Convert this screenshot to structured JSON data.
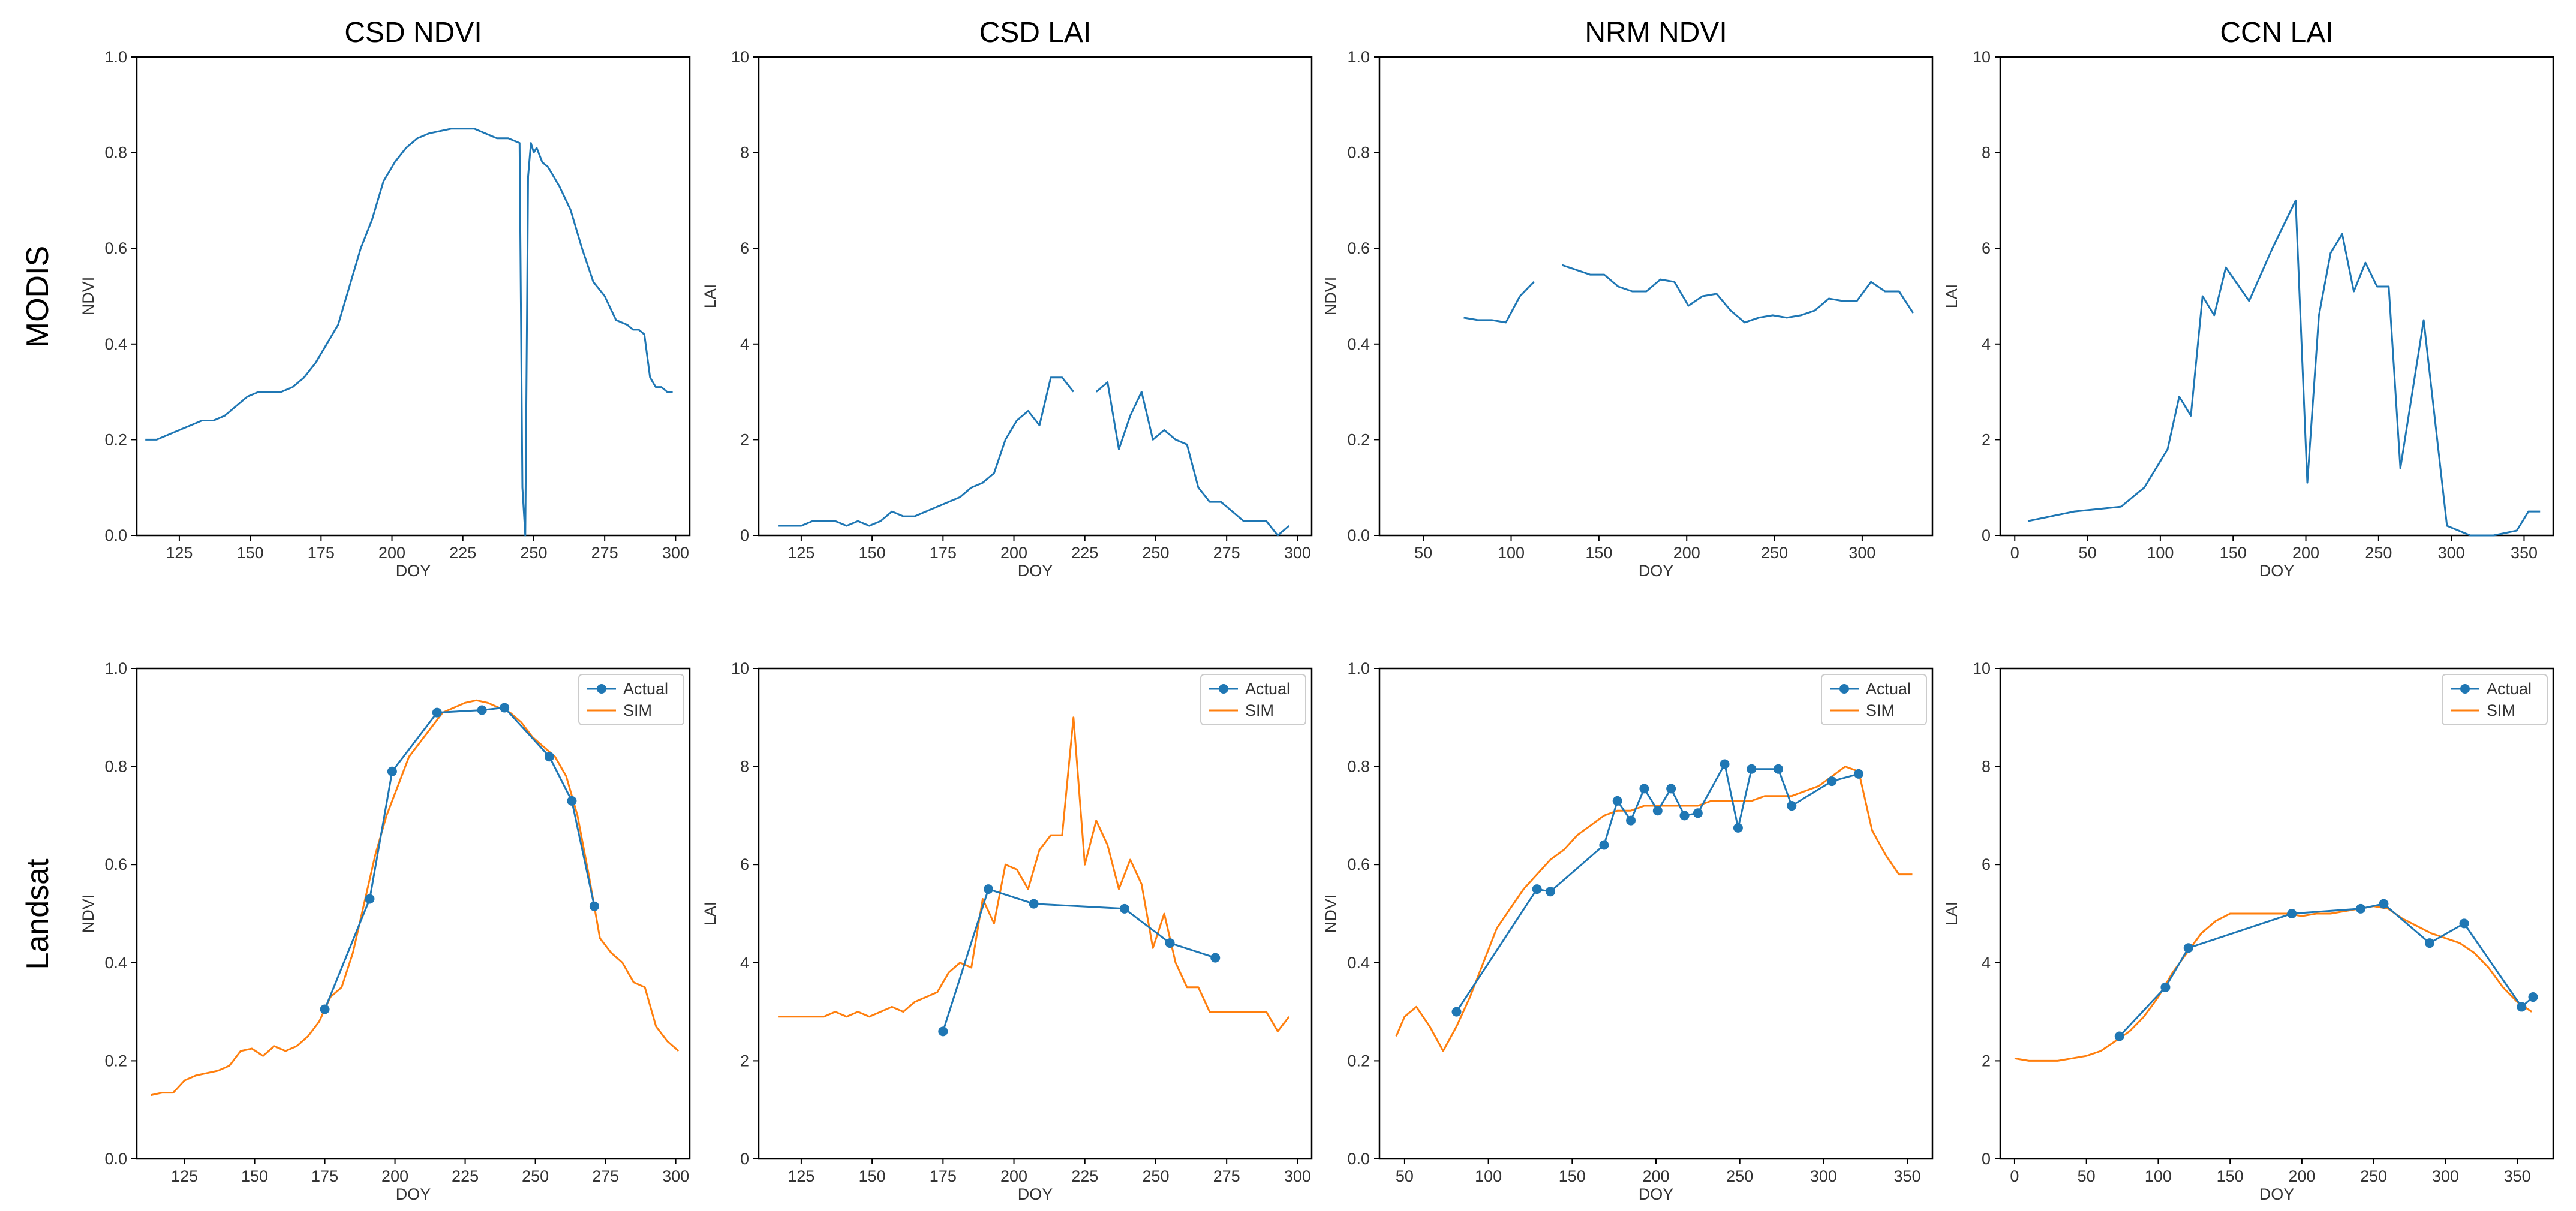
{
  "row_labels": [
    "MODIS",
    "Landsat"
  ],
  "colors": {
    "actual": "#1f77b4",
    "sim": "#ff7f0e"
  },
  "chart_data": [
    {
      "type": "line",
      "title": "CSD NDVI",
      "xlabel": "DOY",
      "ylabel": "NDVI",
      "xlim": [
        110,
        305
      ],
      "ylim": [
        0,
        1.0
      ],
      "xticks": [
        125,
        150,
        175,
        200,
        225,
        250,
        275,
        300
      ],
      "yticks": [
        0,
        0.2,
        0.4,
        0.6,
        0.8,
        1.0
      ],
      "series": [
        {
          "name": "MODIS",
          "color": "#1f77b4",
          "x": [
            113,
            117,
            121,
            125,
            129,
            133,
            137,
            141,
            145,
            149,
            153,
            157,
            161,
            165,
            169,
            173,
            177,
            181,
            185,
            189,
            193,
            197,
            201,
            205,
            209,
            213,
            217,
            221,
            225,
            229,
            233,
            237,
            241,
            245,
            246,
            247,
            248,
            249,
            250,
            251,
            253,
            255,
            259,
            263,
            267,
            271,
            275,
            279,
            283,
            285,
            287,
            289,
            291,
            293,
            295,
            297,
            299
          ],
          "y": [
            0.2,
            0.2,
            0.21,
            0.22,
            0.23,
            0.24,
            0.24,
            0.25,
            0.27,
            0.29,
            0.3,
            0.3,
            0.3,
            0.31,
            0.33,
            0.36,
            0.4,
            0.44,
            0.52,
            0.6,
            0.66,
            0.74,
            0.78,
            0.81,
            0.83,
            0.84,
            0.845,
            0.85,
            0.85,
            0.85,
            0.84,
            0.83,
            0.83,
            0.82,
            0.1,
            0.0,
            0.75,
            0.82,
            0.8,
            0.81,
            0.78,
            0.77,
            0.73,
            0.68,
            0.6,
            0.53,
            0.5,
            0.45,
            0.44,
            0.43,
            0.43,
            0.42,
            0.33,
            0.31,
            0.31,
            0.3,
            0.3
          ]
        }
      ]
    },
    {
      "type": "line",
      "title": "CSD LAI",
      "xlabel": "DOY",
      "ylabel": "LAI",
      "xlim": [
        110,
        305
      ],
      "ylim": [
        0,
        10
      ],
      "xticks": [
        125,
        150,
        175,
        200,
        225,
        250,
        275,
        300
      ],
      "yticks": [
        0,
        2,
        4,
        6,
        8,
        10
      ],
      "series": [
        {
          "name": "MODIS",
          "color": "#1f77b4",
          "x": [
            117,
            125,
            129,
            133,
            137,
            141,
            145,
            149,
            153,
            157,
            161,
            165,
            169,
            173,
            177,
            181,
            185,
            189,
            193,
            197,
            201,
            205,
            209,
            213,
            217,
            221,
            225,
            null,
            229,
            233,
            237,
            241,
            245,
            249,
            253,
            257,
            261,
            265,
            269,
            273,
            277,
            281,
            285,
            289,
            293,
            297
          ],
          "y": [
            0.2,
            0.2,
            0.3,
            0.3,
            0.3,
            0.2,
            0.3,
            0.2,
            0.3,
            0.5,
            0.4,
            0.4,
            0.5,
            0.6,
            0.7,
            0.8,
            1.0,
            1.1,
            1.3,
            2.0,
            2.4,
            2.6,
            2.3,
            3.3,
            3.3,
            3.0,
            null,
            null,
            3.0,
            3.2,
            1.8,
            2.5,
            3.0,
            2.0,
            2.2,
            2.0,
            1.9,
            1.0,
            0.7,
            0.7,
            0.5,
            0.3,
            0.3,
            0.3,
            0.0,
            0.2
          ]
        }
      ]
    },
    {
      "type": "line",
      "title": "NRM NDVI",
      "xlabel": "DOY",
      "ylabel": "NDVI",
      "xlim": [
        25,
        340
      ],
      "ylim": [
        0,
        1.0
      ],
      "xticks": [
        50,
        100,
        150,
        200,
        250,
        300
      ],
      "yticks": [
        0,
        0.2,
        0.4,
        0.6,
        0.8,
        1.0
      ],
      "series": [
        {
          "name": "MODIS",
          "color": "#1f77b4",
          "x": [
            73,
            81,
            89,
            97,
            105,
            113,
            null,
            129,
            137,
            145,
            153,
            161,
            169,
            177,
            185,
            193,
            201,
            209,
            217,
            225,
            233,
            241,
            249,
            257,
            265,
            273,
            281,
            289,
            297,
            305,
            313,
            321,
            329
          ],
          "y": [
            0.455,
            0.45,
            0.45,
            0.445,
            0.5,
            0.53,
            null,
            0.565,
            0.555,
            0.545,
            0.545,
            0.52,
            0.51,
            0.51,
            0.535,
            0.53,
            0.48,
            0.5,
            0.505,
            0.47,
            0.445,
            0.455,
            0.46,
            0.455,
            0.46,
            0.47,
            0.495,
            0.49,
            0.49,
            0.53,
            0.51,
            0.51,
            0.465
          ]
        }
      ]
    },
    {
      "type": "line",
      "title": "CCN LAI",
      "xlabel": "DOY",
      "ylabel": "LAI",
      "xlim": [
        -10,
        370
      ],
      "ylim": [
        0,
        10
      ],
      "xticks": [
        0,
        50,
        100,
        150,
        200,
        250,
        300,
        350
      ],
      "yticks": [
        0,
        2,
        4,
        6,
        8,
        10
      ],
      "series": [
        {
          "name": "MODIS",
          "color": "#1f77b4",
          "x": [
            9,
            25,
            41,
            57,
            73,
            89,
            105,
            113,
            121,
            129,
            137,
            145,
            161,
            177,
            193,
            201,
            209,
            217,
            225,
            233,
            241,
            249,
            257,
            265,
            281,
            297,
            313,
            329,
            345,
            353,
            361
          ],
          "y": [
            0.3,
            0.4,
            0.5,
            0.55,
            0.6,
            1.0,
            1.8,
            2.9,
            2.5,
            5.0,
            4.6,
            5.6,
            4.9,
            6.0,
            7.0,
            1.1,
            4.6,
            5.9,
            6.3,
            5.1,
            5.7,
            5.2,
            5.2,
            1.4,
            4.5,
            0.2,
            0.0,
            0.0,
            0.1,
            0.5,
            0.5
          ]
        }
      ]
    },
    {
      "type": "line",
      "title": "",
      "xlabel": "DOY",
      "ylabel": "NDVI",
      "xlim": [
        108,
        305
      ],
      "ylim": [
        0,
        1.0
      ],
      "xticks": [
        125,
        150,
        175,
        200,
        225,
        250,
        275,
        300
      ],
      "yticks": [
        0,
        0.2,
        0.4,
        0.6,
        0.8,
        1.0
      ],
      "legend": [
        "Actual",
        "SIM"
      ],
      "legend_loc": "top-right",
      "series": [
        {
          "name": "Actual",
          "color": "#1f77b4",
          "markers": true,
          "x": [
            175,
            191,
            199,
            215,
            231,
            239,
            255,
            263,
            271
          ],
          "y": [
            0.305,
            0.53,
            0.79,
            0.91,
            0.915,
            0.92,
            0.82,
            0.73,
            0.515
          ]
        },
        {
          "name": "SIM",
          "color": "#ff7f0e",
          "x": [
            113,
            117,
            121,
            125,
            129,
            133,
            137,
            141,
            145,
            149,
            153,
            157,
            161,
            165,
            169,
            173,
            177,
            181,
            185,
            189,
            193,
            197,
            201,
            205,
            209,
            213,
            217,
            221,
            225,
            229,
            233,
            237,
            241,
            245,
            249,
            253,
            257,
            261,
            265,
            269,
            273,
            277,
            281,
            285,
            289,
            293,
            297,
            301
          ],
          "y": [
            0.13,
            0.135,
            0.135,
            0.16,
            0.17,
            0.175,
            0.18,
            0.19,
            0.22,
            0.225,
            0.21,
            0.23,
            0.22,
            0.23,
            0.25,
            0.28,
            0.33,
            0.35,
            0.42,
            0.52,
            0.62,
            0.7,
            0.76,
            0.82,
            0.85,
            0.88,
            0.91,
            0.92,
            0.93,
            0.935,
            0.93,
            0.92,
            0.91,
            0.89,
            0.86,
            0.84,
            0.82,
            0.78,
            0.7,
            0.58,
            0.45,
            0.42,
            0.4,
            0.36,
            0.35,
            0.27,
            0.24,
            0.22
          ]
        }
      ]
    },
    {
      "type": "line",
      "title": "",
      "xlabel": "DOY",
      "ylabel": "LAI",
      "xlim": [
        110,
        305
      ],
      "ylim": [
        0,
        10
      ],
      "xticks": [
        125,
        150,
        175,
        200,
        225,
        250,
        275,
        300
      ],
      "yticks": [
        0,
        2,
        4,
        6,
        8,
        10
      ],
      "legend": [
        "Actual",
        "SIM"
      ],
      "legend_loc": "top-right",
      "series": [
        {
          "name": "Actual",
          "color": "#1f77b4",
          "markers": true,
          "x": [
            175,
            191,
            207,
            239,
            255,
            271
          ],
          "y": [
            2.6,
            5.5,
            5.2,
            5.1,
            4.4,
            4.1
          ]
        },
        {
          "name": "SIM",
          "color": "#ff7f0e",
          "x": [
            117,
            121,
            125,
            129,
            133,
            137,
            141,
            145,
            149,
            153,
            157,
            161,
            165,
            169,
            173,
            177,
            181,
            185,
            189,
            193,
            197,
            201,
            205,
            209,
            213,
            217,
            221,
            225,
            229,
            233,
            237,
            241,
            245,
            249,
            253,
            257,
            261,
            265,
            269,
            273,
            277,
            281,
            285,
            289,
            293,
            297
          ],
          "y": [
            2.9,
            2.9,
            2.9,
            2.9,
            2.9,
            3.0,
            2.9,
            3.0,
            2.9,
            3.0,
            3.1,
            3.0,
            3.2,
            3.3,
            3.4,
            3.8,
            4.0,
            3.9,
            5.3,
            4.8,
            6.0,
            5.9,
            5.5,
            6.3,
            6.6,
            6.6,
            9.0,
            6.0,
            6.9,
            6.4,
            5.5,
            6.1,
            5.6,
            4.3,
            5.0,
            4.0,
            3.5,
            3.5,
            3.0,
            3.0,
            3.0,
            3.0,
            3.0,
            3.0,
            2.6,
            2.9
          ]
        }
      ]
    },
    {
      "type": "line",
      "title": "",
      "xlabel": "DOY",
      "ylabel": "NDVI",
      "xlim": [
        35,
        365
      ],
      "ylim": [
        0,
        1.0
      ],
      "xticks": [
        50,
        100,
        150,
        200,
        250,
        300,
        350
      ],
      "yticks": [
        0,
        0.2,
        0.4,
        0.6,
        0.8,
        1.0
      ],
      "legend": [
        "Actual",
        "SIM"
      ],
      "legend_loc": "top-right",
      "series": [
        {
          "name": "Actual",
          "color": "#1f77b4",
          "markers": true,
          "x": [
            81,
            129,
            137,
            169,
            177,
            185,
            193,
            201,
            209,
            217,
            225,
            241,
            249,
            257,
            273,
            281,
            305,
            321
          ],
          "y": [
            0.3,
            0.55,
            0.545,
            0.64,
            0.73,
            0.69,
            0.755,
            0.71,
            0.755,
            0.7,
            0.705,
            0.805,
            0.675,
            0.795,
            0.795,
            0.72,
            0.77,
            0.785
          ]
        },
        {
          "name": "SIM",
          "color": "#ff7f0e",
          "x": [
            45,
            50,
            57,
            65,
            73,
            81,
            89,
            97,
            105,
            113,
            121,
            129,
            137,
            145,
            153,
            161,
            169,
            177,
            185,
            193,
            201,
            209,
            217,
            225,
            233,
            241,
            249,
            257,
            265,
            273,
            281,
            289,
            297,
            305,
            313,
            321,
            329,
            337,
            345,
            353
          ],
          "y": [
            0.25,
            0.29,
            0.31,
            0.27,
            0.22,
            0.27,
            0.33,
            0.4,
            0.47,
            0.51,
            0.55,
            0.58,
            0.61,
            0.63,
            0.66,
            0.68,
            0.7,
            0.71,
            0.71,
            0.72,
            0.72,
            0.72,
            0.72,
            0.72,
            0.73,
            0.73,
            0.73,
            0.73,
            0.74,
            0.74,
            0.74,
            0.75,
            0.76,
            0.78,
            0.8,
            0.79,
            0.67,
            0.62,
            0.58,
            0.58
          ]
        }
      ]
    },
    {
      "type": "line",
      "title": "",
      "xlabel": "DOY",
      "ylabel": "LAI",
      "xlim": [
        -10,
        375
      ],
      "ylim": [
        0,
        10
      ],
      "xticks": [
        0,
        50,
        100,
        150,
        200,
        250,
        300,
        350
      ],
      "yticks": [
        0,
        2,
        4,
        6,
        8,
        10
      ],
      "legend": [
        "Actual",
        "SIM"
      ],
      "legend_loc": "top-right",
      "series": [
        {
          "name": "Actual",
          "color": "#1f77b4",
          "markers": true,
          "x": [
            73,
            105,
            121,
            193,
            241,
            257,
            289,
            313,
            353,
            361
          ],
          "y": [
            2.5,
            3.5,
            4.3,
            5.0,
            5.1,
            5.2,
            4.4,
            4.8,
            3.1,
            3.3
          ]
        },
        {
          "name": "SIM",
          "color": "#ff7f0e",
          "x": [
            0,
            10,
            20,
            30,
            40,
            50,
            60,
            70,
            80,
            90,
            100,
            110,
            120,
            130,
            140,
            150,
            160,
            170,
            180,
            190,
            200,
            210,
            220,
            230,
            240,
            250,
            260,
            270,
            280,
            290,
            300,
            310,
            320,
            330,
            340,
            350,
            360
          ],
          "y": [
            2.05,
            2.0,
            2.0,
            2.0,
            2.05,
            2.1,
            2.2,
            2.4,
            2.6,
            2.9,
            3.3,
            3.8,
            4.2,
            4.6,
            4.85,
            5.0,
            5.0,
            5.0,
            5.0,
            5.0,
            4.95,
            5.0,
            5.0,
            5.05,
            5.1,
            5.15,
            5.1,
            4.9,
            4.75,
            4.6,
            4.5,
            4.4,
            4.2,
            3.9,
            3.5,
            3.2,
            3.0
          ]
        }
      ]
    }
  ]
}
